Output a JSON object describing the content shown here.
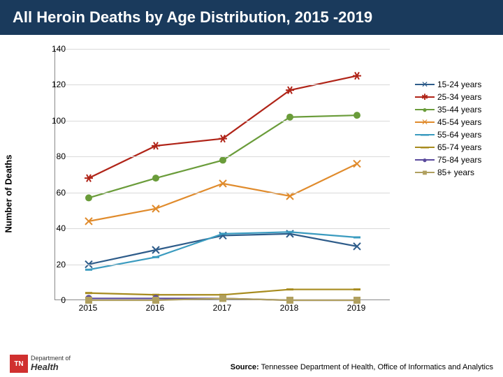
{
  "title": "All Heroin Deaths by Age Distribution, 2015 -2019",
  "ylabel": "Number of Deaths",
  "source_label": "Source:",
  "source_text": " Tennessee Department of Health, Office of Informatics and Analytics",
  "logo_state": "TN",
  "logo_dept": "Department of",
  "logo_name": "Health",
  "chart": {
    "type": "line",
    "ylim": [
      0,
      140
    ],
    "ytick_step": 20,
    "x_categories": [
      "2015",
      "2016",
      "2017",
      "2018",
      "2019"
    ],
    "grid_color": "#d9d9d9",
    "axis_color": "#888888",
    "background_color": "#ffffff",
    "title_bg": "#1a3a5c",
    "title_color": "#ffffff",
    "label_fontsize": 12,
    "line_width": 2.2,
    "marker_size": 5,
    "series": [
      {
        "name": "15-24 years",
        "color": "#2e5c8a",
        "marker": "x",
        "values": [
          20,
          28,
          36,
          37,
          30
        ]
      },
      {
        "name": "25-34 years",
        "color": "#b02418",
        "marker": "star",
        "values": [
          68,
          86,
          90,
          117,
          125
        ]
      },
      {
        "name": "35-44 years",
        "color": "#6a9c3a",
        "marker": "circle",
        "values": [
          57,
          68,
          78,
          102,
          103
        ]
      },
      {
        "name": "45-54 years",
        "color": "#e08b2c",
        "marker": "x",
        "values": [
          44,
          51,
          65,
          58,
          76
        ]
      },
      {
        "name": "55-64 years",
        "color": "#3a9bbf",
        "marker": "line",
        "values": [
          17,
          24,
          37,
          38,
          35
        ]
      },
      {
        "name": "65-74 years",
        "color": "#a78b1e",
        "marker": "line",
        "values": [
          4,
          3,
          3,
          6,
          6
        ]
      },
      {
        "name": "75-84 years",
        "color": "#5a4a9c",
        "marker": "circle",
        "values": [
          1,
          1,
          1,
          0,
          0
        ]
      },
      {
        "name": "85+ years",
        "color": "#b0a060",
        "marker": "square",
        "values": [
          0,
          0,
          1,
          0,
          0
        ]
      }
    ]
  }
}
